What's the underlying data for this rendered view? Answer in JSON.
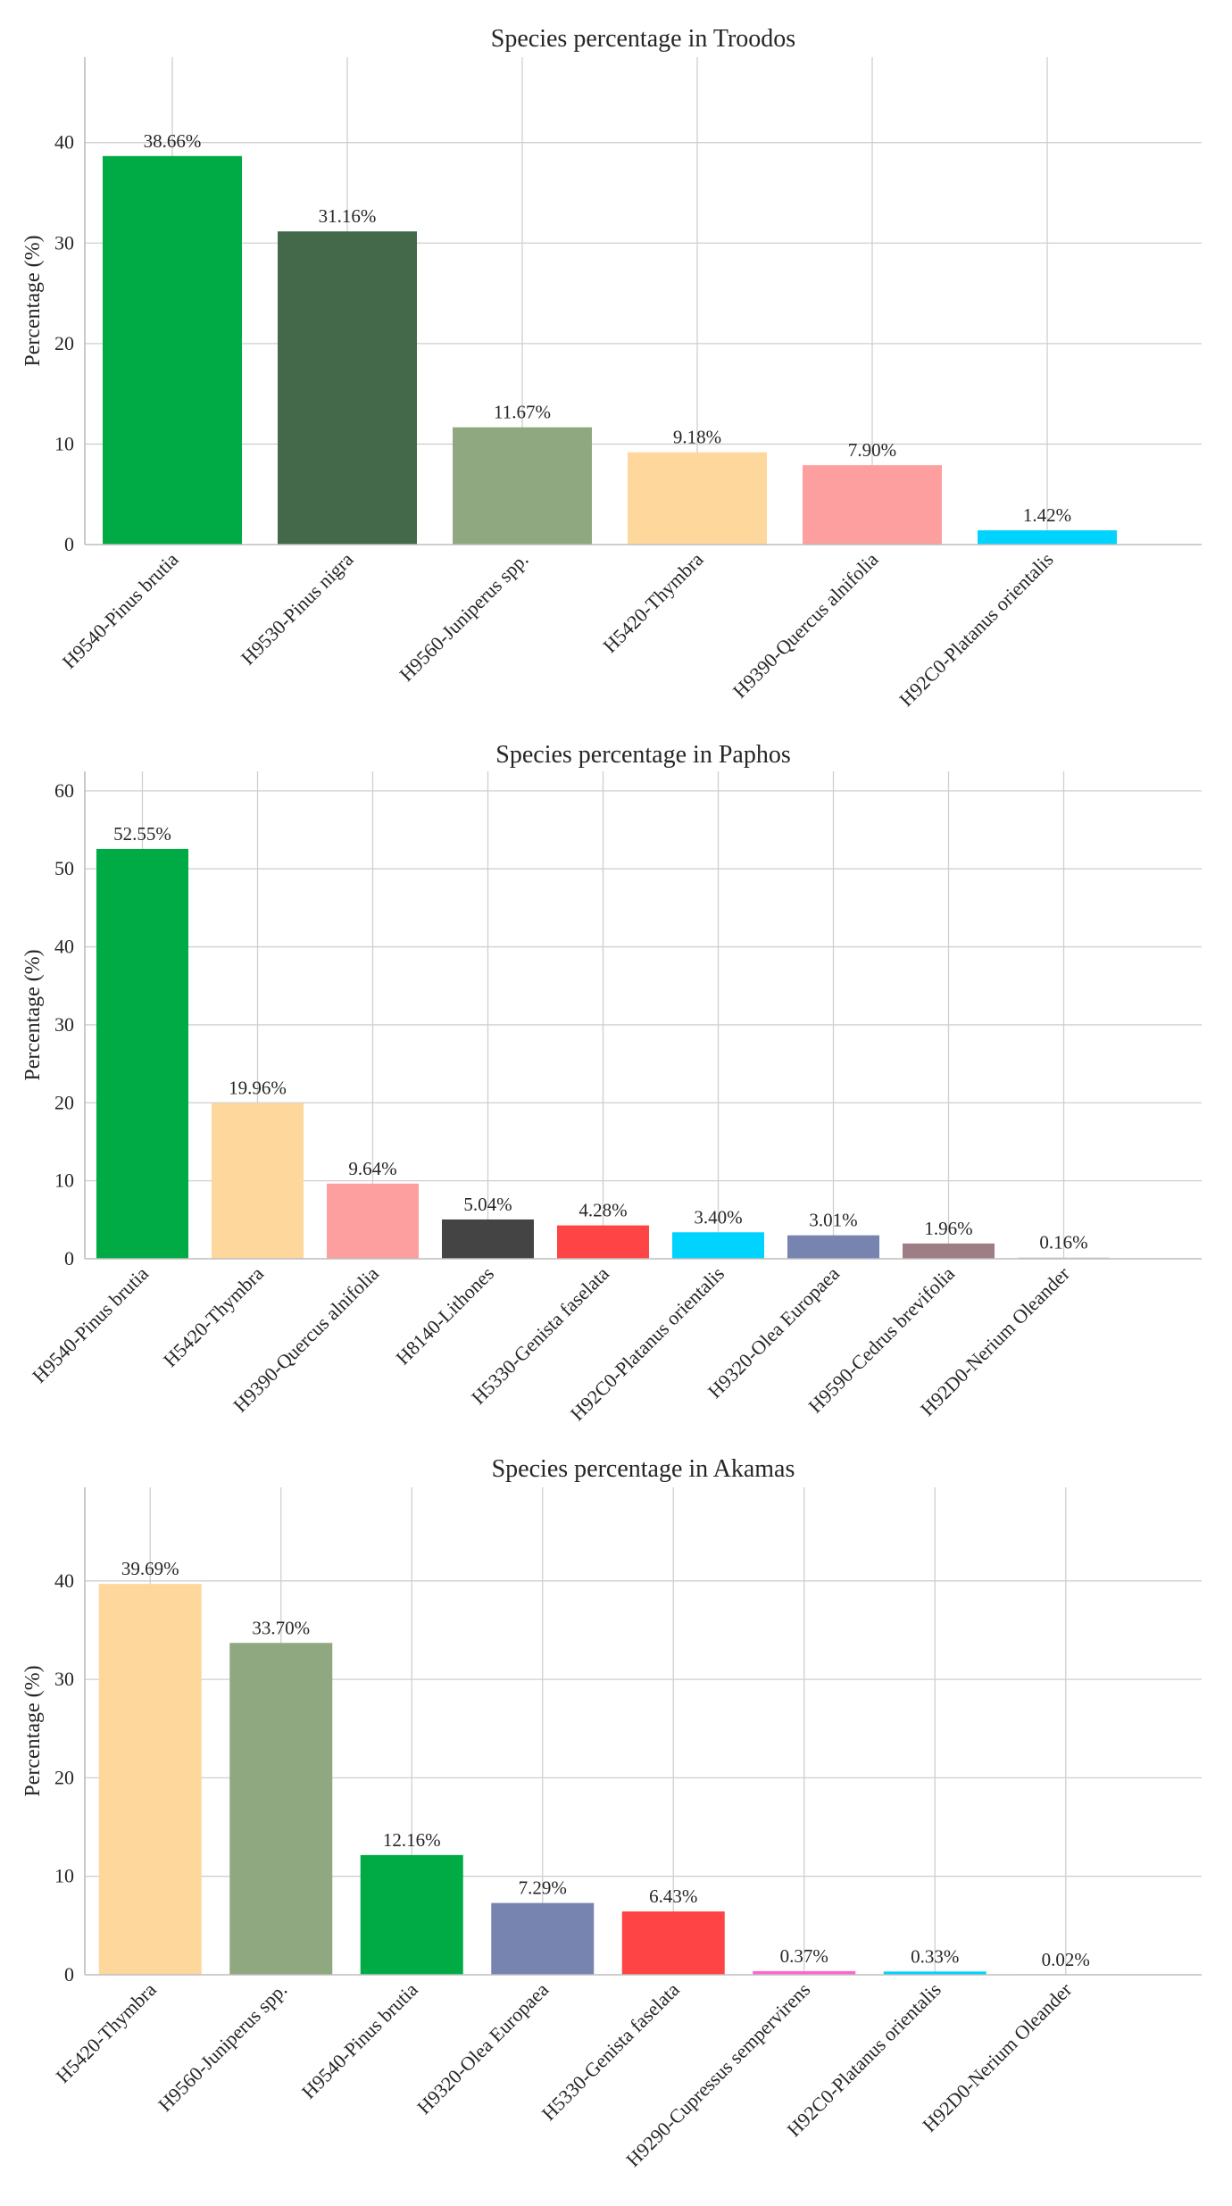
{
  "chart_data": [
    {
      "type": "bar",
      "title": "Species percentage in Troodos",
      "xlabel": "",
      "ylabel": "Percentage (%)",
      "ylim": [
        0,
        48.5
      ],
      "yticks": [
        0,
        10,
        20,
        30,
        40
      ],
      "grid": true,
      "categories": [
        "H9540-Pinus brutia",
        "H9530-Pinus nigra",
        "H9560-Juniperus spp.",
        "H5420-Thymbra",
        "H9390-Quercus alnifolia",
        "H92C0-Platanus orientalis"
      ],
      "values": [
        38.66,
        31.16,
        11.67,
        9.18,
        7.9,
        1.42
      ],
      "labels": [
        "38.66%",
        "31.16%",
        "11.67%",
        "9.18%",
        "7.90%",
        "1.42%"
      ],
      "colors": [
        "#00ab45",
        "#43684a",
        "#90a880",
        "#fed79c",
        "#fe9f9f",
        "#00d4fe"
      ]
    },
    {
      "type": "bar",
      "title": "Species percentage in Paphos",
      "xlabel": "",
      "ylabel": "Percentage (%)",
      "ylim": [
        0,
        62.5
      ],
      "yticks": [
        0,
        10,
        20,
        30,
        40,
        50,
        60
      ],
      "grid": true,
      "categories": [
        "H9540-Pinus brutia",
        "H5420-Thymbra",
        "H9390-Quercus alnifolia",
        "H8140-Lithones",
        "H5330-Genista faselata",
        "H92C0-Platanus orientalis",
        "H9320-Olea Europaea",
        "H9590-Cedrus brevifolia",
        "H92D0-Nerium Oleander"
      ],
      "values": [
        52.55,
        19.96,
        9.64,
        5.04,
        4.28,
        3.4,
        3.01,
        1.96,
        0.16
      ],
      "labels": [
        "52.55%",
        "19.96%",
        "9.64%",
        "5.04%",
        "4.28%",
        "3.40%",
        "3.01%",
        "1.96%",
        "0.16%"
      ],
      "colors": [
        "#00ab45",
        "#fed79c",
        "#fe9f9f",
        "#444444",
        "#fe4444",
        "#00d4fe",
        "#7884b0",
        "#9f7d85",
        "#cccccc"
      ]
    },
    {
      "type": "bar",
      "title": "Species percentage in Akamas",
      "xlabel": "",
      "ylabel": "Percentage (%)",
      "ylim": [
        0,
        49.5
      ],
      "yticks": [
        0,
        10,
        20,
        30,
        40
      ],
      "grid": true,
      "categories": [
        "H5420-Thymbra",
        "H9560-Juniperus spp.",
        "H9540-Pinus brutia",
        "H9320-Olea Europaea",
        "H5330-Genista faselata",
        "H9290-Cupressus sempervirens",
        "H92C0-Platanus orientalis",
        "H92D0-Nerium Oleander"
      ],
      "values": [
        39.69,
        33.7,
        12.16,
        7.29,
        6.43,
        0.37,
        0.33,
        0.02
      ],
      "labels": [
        "39.69%",
        "33.70%",
        "12.16%",
        "7.29%",
        "6.43%",
        "0.37%",
        "0.33%",
        "0.02%"
      ],
      "colors": [
        "#fed79c",
        "#90a880",
        "#00ab45",
        "#7884b0",
        "#fe4444",
        "#ff66cc",
        "#00d4fe",
        "#cccccc"
      ]
    }
  ]
}
